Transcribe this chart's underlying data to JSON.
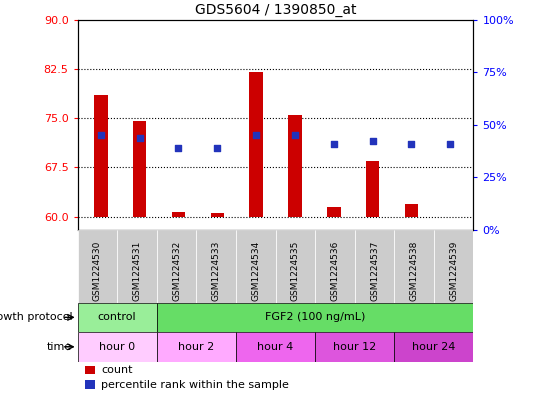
{
  "title": "GDS5604 / 1390850_at",
  "samples": [
    "GSM1224530",
    "GSM1224531",
    "GSM1224532",
    "GSM1224533",
    "GSM1224534",
    "GSM1224535",
    "GSM1224536",
    "GSM1224537",
    "GSM1224538",
    "GSM1224539"
  ],
  "bar_values": [
    78.5,
    74.5,
    60.8,
    60.5,
    82.0,
    75.5,
    61.5,
    68.5,
    62.0,
    60.0
  ],
  "bar_baseline": 60.0,
  "blue_values": [
    72.5,
    72.0,
    70.5,
    70.5,
    72.5,
    72.5,
    71.0,
    71.5,
    71.0,
    71.0
  ],
  "ylim_left": [
    58,
    90
  ],
  "yticks_left": [
    60,
    67.5,
    75,
    82.5,
    90
  ],
  "yticks_right": [
    0,
    25,
    50,
    75,
    100
  ],
  "ytick_labels_right": [
    "0%",
    "25%",
    "50%",
    "75%",
    "100%"
  ],
  "bar_color": "#cc0000",
  "blue_color": "#2233bb",
  "grid_style": "dotted",
  "grid_color": "black",
  "sample_bg_color": "#cccccc",
  "groups": {
    "growth_protocol": [
      {
        "label": "control",
        "color": "#99ee99",
        "start": 0,
        "end": 2
      },
      {
        "label": "FGF2 (100 ng/mL)",
        "color": "#66dd66",
        "start": 2,
        "end": 10
      }
    ],
    "time": [
      {
        "label": "hour 0",
        "color": "#ffccff",
        "start": 0,
        "end": 2
      },
      {
        "label": "hour 2",
        "color": "#ffaaff",
        "start": 2,
        "end": 4
      },
      {
        "label": "hour 4",
        "color": "#ee66ee",
        "start": 4,
        "end": 6
      },
      {
        "label": "hour 12",
        "color": "#dd55dd",
        "start": 6,
        "end": 8
      },
      {
        "label": "hour 24",
        "color": "#cc44cc",
        "start": 8,
        "end": 10
      }
    ]
  },
  "legend_items": [
    {
      "label": "count",
      "color": "#cc0000"
    },
    {
      "label": "percentile rank within the sample",
      "color": "#2233bb"
    }
  ],
  "annotation_growth_protocol": "growth protocol",
  "annotation_time": "time",
  "bg_color": "#ffffff",
  "plot_bg_color": "#ffffff"
}
